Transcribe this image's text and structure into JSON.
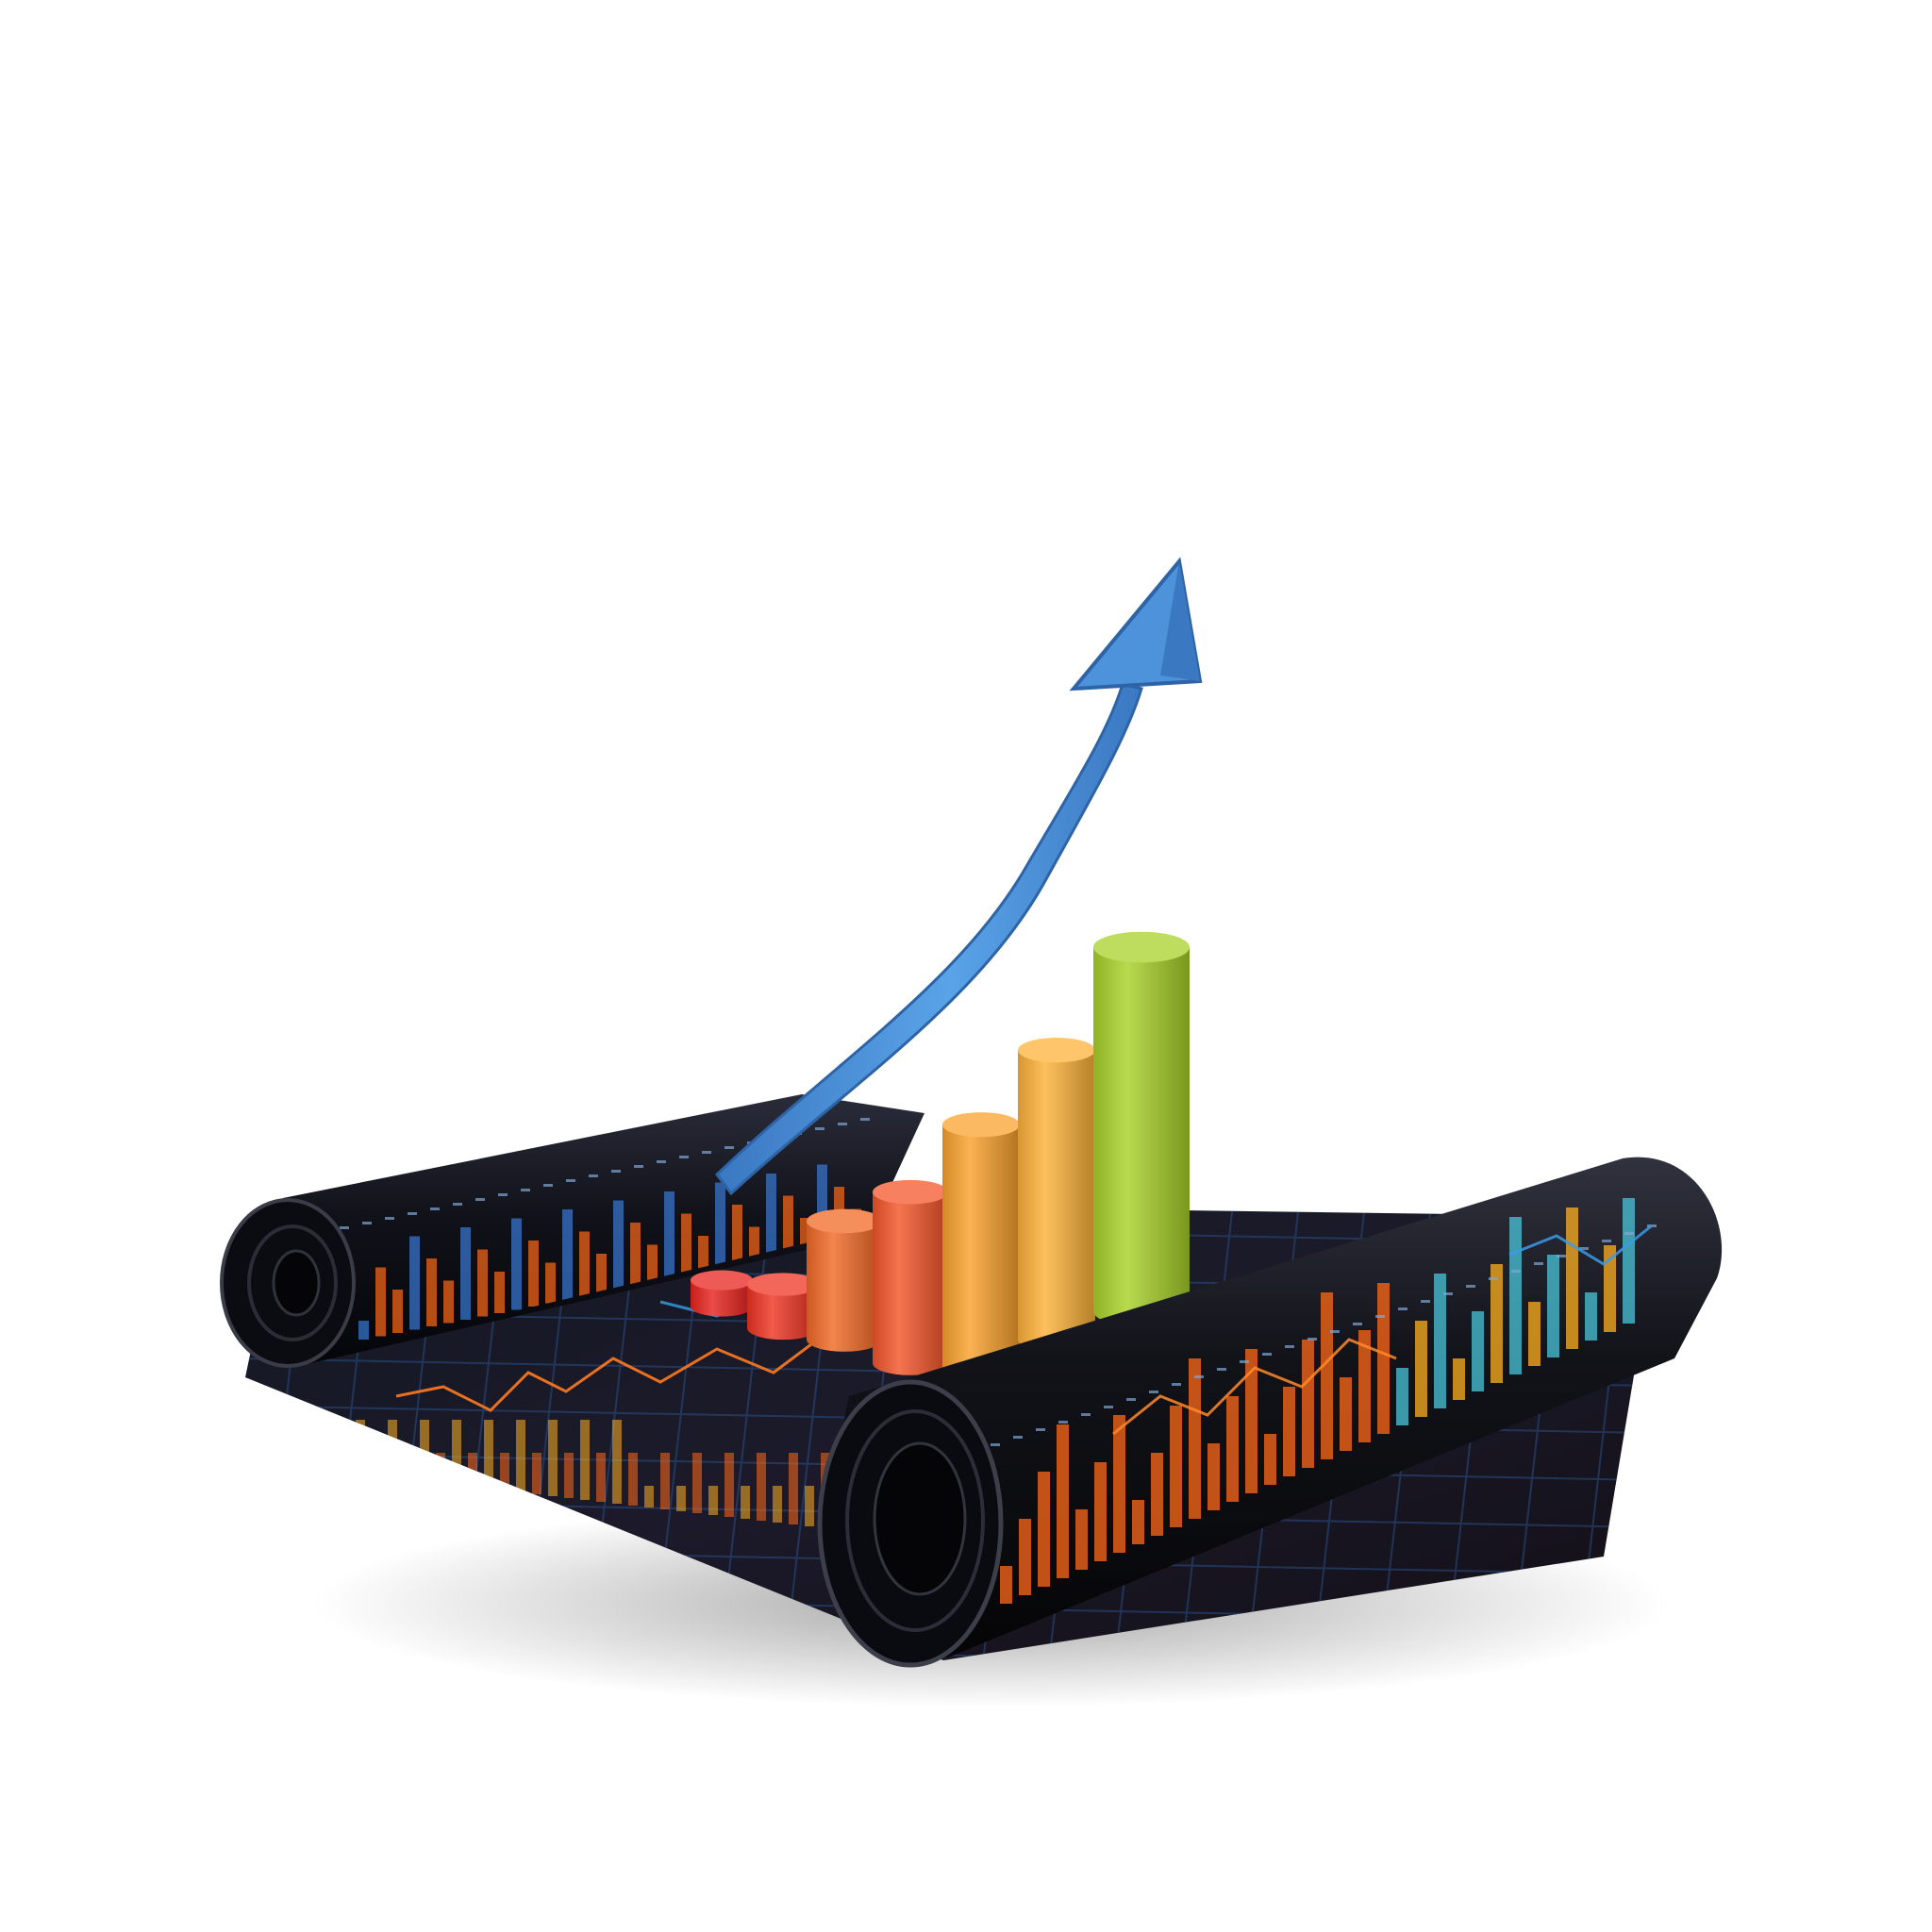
{
  "scene": {
    "subject": "3d-bar-chart-on-rolled-chart-scroll",
    "background_color": "#ffffff",
    "mat_color": "#15171f",
    "mat_grid_color": "#2b4f86",
    "mat_accent_colors": [
      "#ff6a1a",
      "#ffb020",
      "#3a7bd5",
      "#49c6d9"
    ],
    "arrow_color": "#4a8fd6",
    "arrow_icon": "trend-up-arrow-icon",
    "bar_levels": [
      0.06,
      0.1,
      0.27,
      0.39,
      0.55,
      0.66,
      0.83
    ],
    "bar_colors": [
      "#e8231e",
      "#ee3422",
      "#f06a26",
      "#f3552a",
      "#f9a12c",
      "#fdb23a",
      "#a8d22a"
    ]
  }
}
